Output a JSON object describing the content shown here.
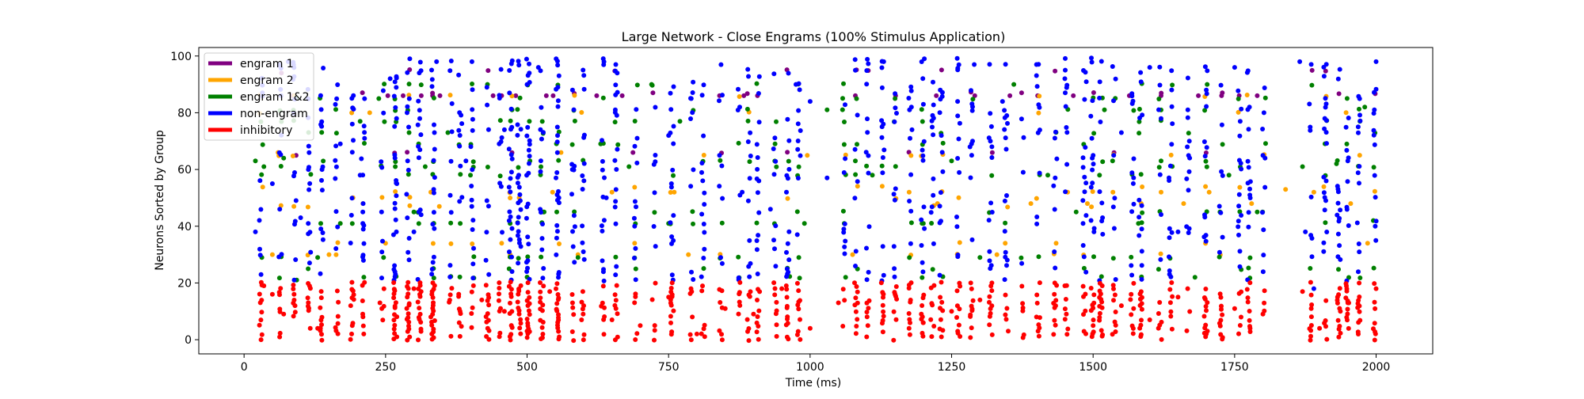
{
  "chart_data": {
    "type": "scatter",
    "title": "Large Network - Close Engrams (100% Stimulus Application)",
    "xlabel": "Time (ms)",
    "ylabel": "Neurons Sorted by Group",
    "xlim": [
      -80,
      2100
    ],
    "ylim": [
      -5,
      103
    ],
    "x_ticks": [
      0,
      250,
      500,
      750,
      1000,
      1250,
      1500,
      1750,
      2000
    ],
    "y_ticks": [
      0,
      20,
      40,
      60,
      80,
      100
    ],
    "grid": false,
    "legend_position": "top-left",
    "series": [
      {
        "name": "engram 1",
        "color": "#800080",
        "neuron_rows": [
          66,
          87,
          95
        ],
        "density": 0.45,
        "x": [
          66,
          86,
          92,
          254,
          281,
          313,
          333,
          346,
          440,
          455,
          480,
          534,
          546,
          623,
          668,
          687,
          840,
          883,
          907,
          1080,
          1151,
          1223,
          1291,
          1353,
          1402,
          1465,
          1564,
          1620,
          1686,
          1727,
          1758,
          1790
        ],
        "y": [
          94,
          86,
          65,
          86,
          86,
          86,
          86,
          86,
          86,
          86,
          86,
          86,
          86,
          86,
          86,
          66,
          86,
          86,
          86,
          86,
          86,
          86,
          86,
          86,
          86,
          86,
          86,
          86,
          86,
          86,
          86,
          86
        ]
      },
      {
        "name": "engram 2",
        "color": "#FFA500",
        "neuron_rows": [
          30,
          34,
          47,
          50,
          52,
          54,
          65,
          80,
          86
        ],
        "density": 0.3,
        "x": [
          50,
          60,
          88,
          150,
          210,
          222,
          250,
          330,
          345,
          455,
          470,
          545,
          560,
          590,
          650,
          690,
          760,
          785,
          995,
          1075,
          1175,
          1225,
          1330,
          1390,
          1455,
          1490,
          1535,
          1585,
          1620,
          1660,
          1705,
          1780,
          1840,
          1890,
          1955,
          1985
        ],
        "y": [
          30,
          66,
          47,
          30,
          48,
          80,
          34,
          52,
          47,
          34,
          30,
          52,
          66,
          30,
          52,
          34,
          52,
          30,
          65,
          30,
          52,
          48,
          30,
          48,
          52,
          48,
          52,
          48,
          52,
          48,
          52,
          48,
          53,
          52,
          48,
          34
        ]
      },
      {
        "name": "engram 1&2",
        "color": "#008000",
        "neuron_rows": [
          22,
          25,
          29,
          41,
          45,
          58,
          61,
          63,
          69,
          73,
          77,
          81,
          85,
          90
        ],
        "density": 0.55,
        "x": [
          20,
          35,
          70,
          93,
          130,
          170,
          205,
          238,
          300,
          320,
          360,
          400,
          430,
          470,
          505,
          530,
          590,
          630,
          680,
          720,
          750,
          770,
          980,
          990,
          1030,
          1080,
          1110,
          1150,
          1200,
          1250,
          1300,
          1360,
          1420,
          1470,
          1520,
          1580,
          1620,
          1680,
          1740,
          1790,
          1870,
          1930,
          1980,
          1995
        ],
        "y": [
          63,
          61,
          64,
          21,
          29,
          41,
          77,
          85,
          45,
          61,
          73,
          58,
          90,
          41,
          63,
          45,
          29,
          69,
          61,
          90,
          41,
          77,
          29,
          41,
          81,
          63,
          58,
          85,
          41,
          63,
          29,
          90,
          58,
          45,
          81,
          41,
          63,
          22,
          58,
          45,
          61,
          62,
          82,
          42
        ]
      },
      {
        "name": "non-engram",
        "color": "#0000FF",
        "row_range": [
          21,
          99
        ],
        "density": 0.4,
        "x": [
          20,
          30,
          50,
          63,
          78,
          100,
          170,
          205,
          258,
          270,
          300,
          340,
          392,
          460,
          520,
          580,
          640,
          690,
          750,
          790,
          840,
          880,
          930,
          975,
          1000,
          1030,
          1080,
          1130,
          1180,
          1230,
          1290,
          1340,
          1400,
          1450,
          1500,
          1550,
          1600,
          1650,
          1700,
          1750,
          1800,
          1865,
          1875,
          1890,
          1950,
          2000
        ],
        "y": [
          38,
          23,
          55,
          46,
          98,
          43,
          69,
          58,
          92,
          55,
          38,
          98,
          63,
          74,
          96,
          60,
          50,
          40,
          72,
          85,
          65,
          52,
          46,
          90,
          84,
          57,
          95,
          98,
          74,
          88,
          97,
          84,
          97,
          92,
          65,
          73,
          96,
          38,
          88,
          96,
          65,
          98,
          38,
          18,
          63,
          98
        ]
      },
      {
        "name": "inhibitory",
        "color": "#FF0000",
        "row_range": [
          0,
          20
        ],
        "density": 1.0,
        "x": [
          30,
          35,
          50,
          70,
          90,
          130,
          190,
          240,
          270,
          300,
          330,
          380,
          420,
          460,
          500,
          540,
          600,
          650,
          700,
          750,
          800,
          850,
          900,
          950,
          1000,
          1050,
          1100,
          1150,
          1200,
          1250,
          1300,
          1350,
          1400,
          1450,
          1500,
          1550,
          1600,
          1650,
          1700,
          1750,
          1800,
          1870,
          1900,
          1950,
          2000
        ],
        "y": [
          0,
          19,
          16,
          9,
          12,
          4,
          2,
          13,
          1,
          18,
          8,
          6,
          14,
          10,
          3,
          17,
          12,
          7,
          5,
          15,
          2,
          11,
          9,
          18,
          4,
          13,
          1,
          16,
          6,
          10,
          14,
          3,
          8,
          19,
          5,
          12,
          7,
          15,
          2,
          11,
          9,
          17,
          4,
          13,
          18
        ]
      }
    ]
  }
}
